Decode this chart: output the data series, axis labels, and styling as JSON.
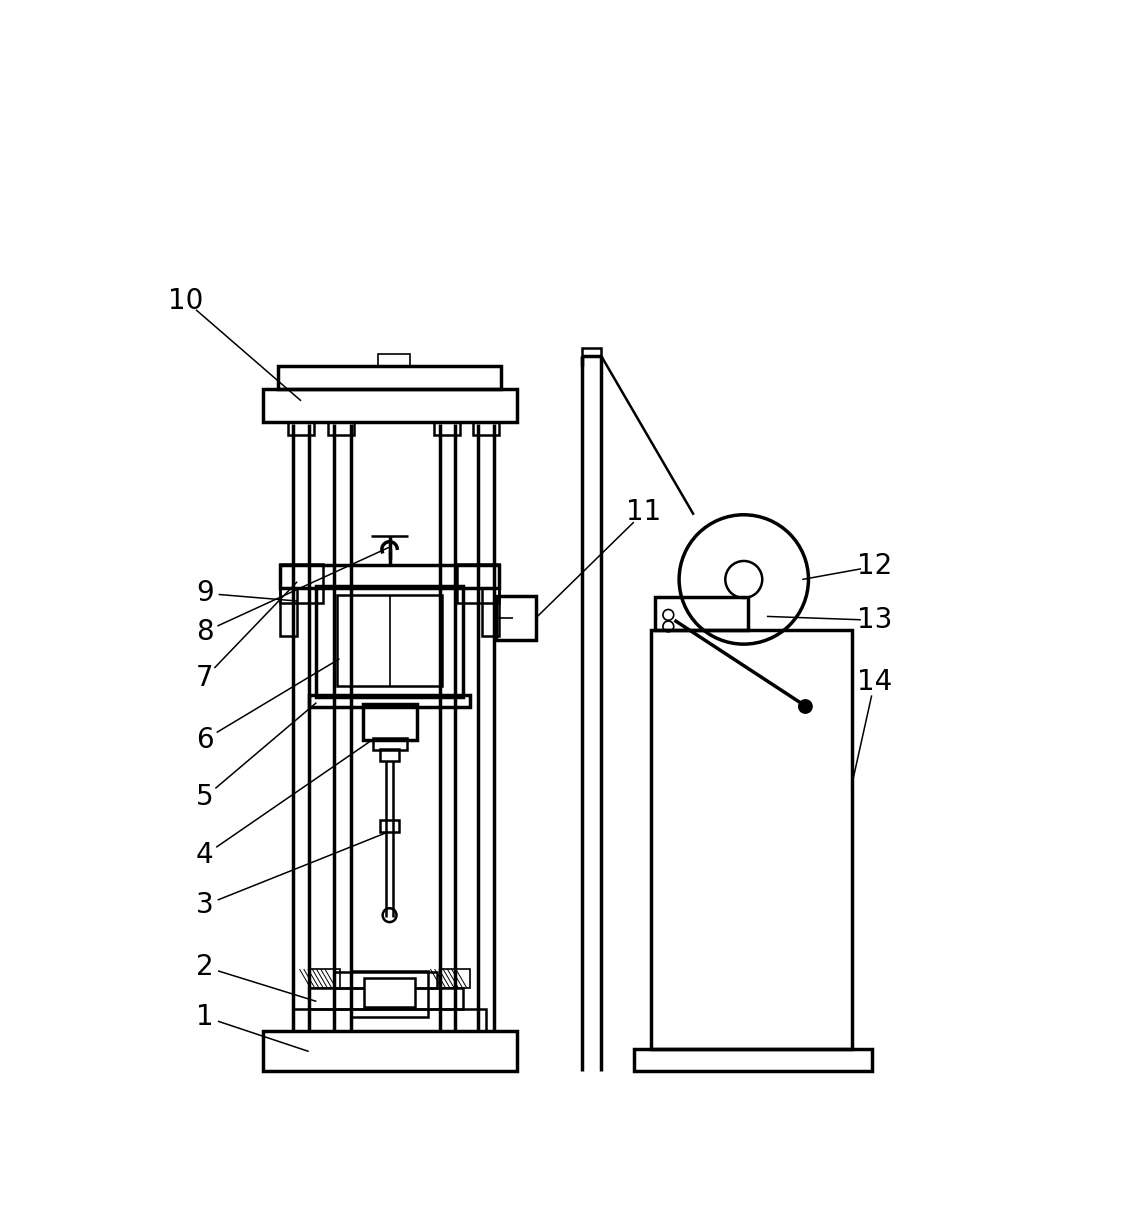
{
  "bg": "#ffffff",
  "lc": "#000000",
  "fig_w": 11.23,
  "fig_h": 12.29,
  "dpi": 100,
  "lw_thick": 2.5,
  "lw_med": 1.8,
  "lw_thin": 1.2,
  "lw_anno": 1.1,
  "label_fs": 20
}
